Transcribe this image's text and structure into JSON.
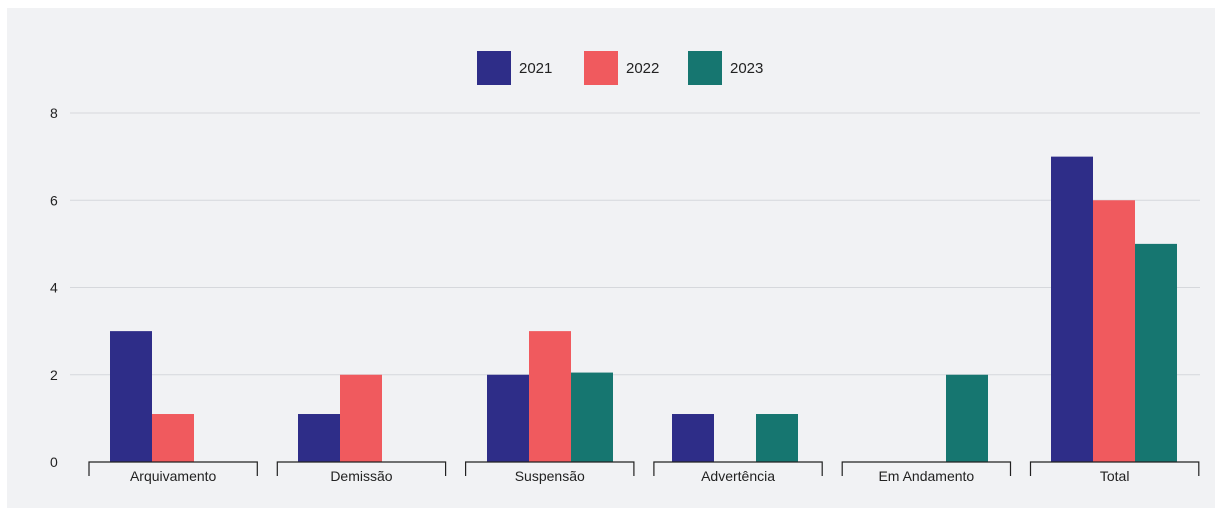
{
  "chart_data": {
    "type": "bar",
    "categories": [
      "Arquivamento",
      "Demissão",
      "Suspensão",
      "Advertência",
      "Em Andamento",
      "Total"
    ],
    "series": [
      {
        "name": "2021",
        "color": "#2e2d88",
        "values": [
          3,
          1.1,
          2,
          1.1,
          0,
          7
        ]
      },
      {
        "name": "2022",
        "color": "#f05a5e",
        "values": [
          1.1,
          2,
          3,
          0,
          0,
          6
        ]
      },
      {
        "name": "2023",
        "color": "#167670",
        "values": [
          0,
          0,
          2.05,
          1.1,
          2,
          5
        ]
      }
    ],
    "yticks": [
      "0",
      "2",
      "4",
      "6",
      "8"
    ],
    "ylim": [
      0,
      8
    ],
    "grid": true,
    "legend_position": "top-center",
    "title": "",
    "xlabel": "",
    "ylabel": ""
  }
}
